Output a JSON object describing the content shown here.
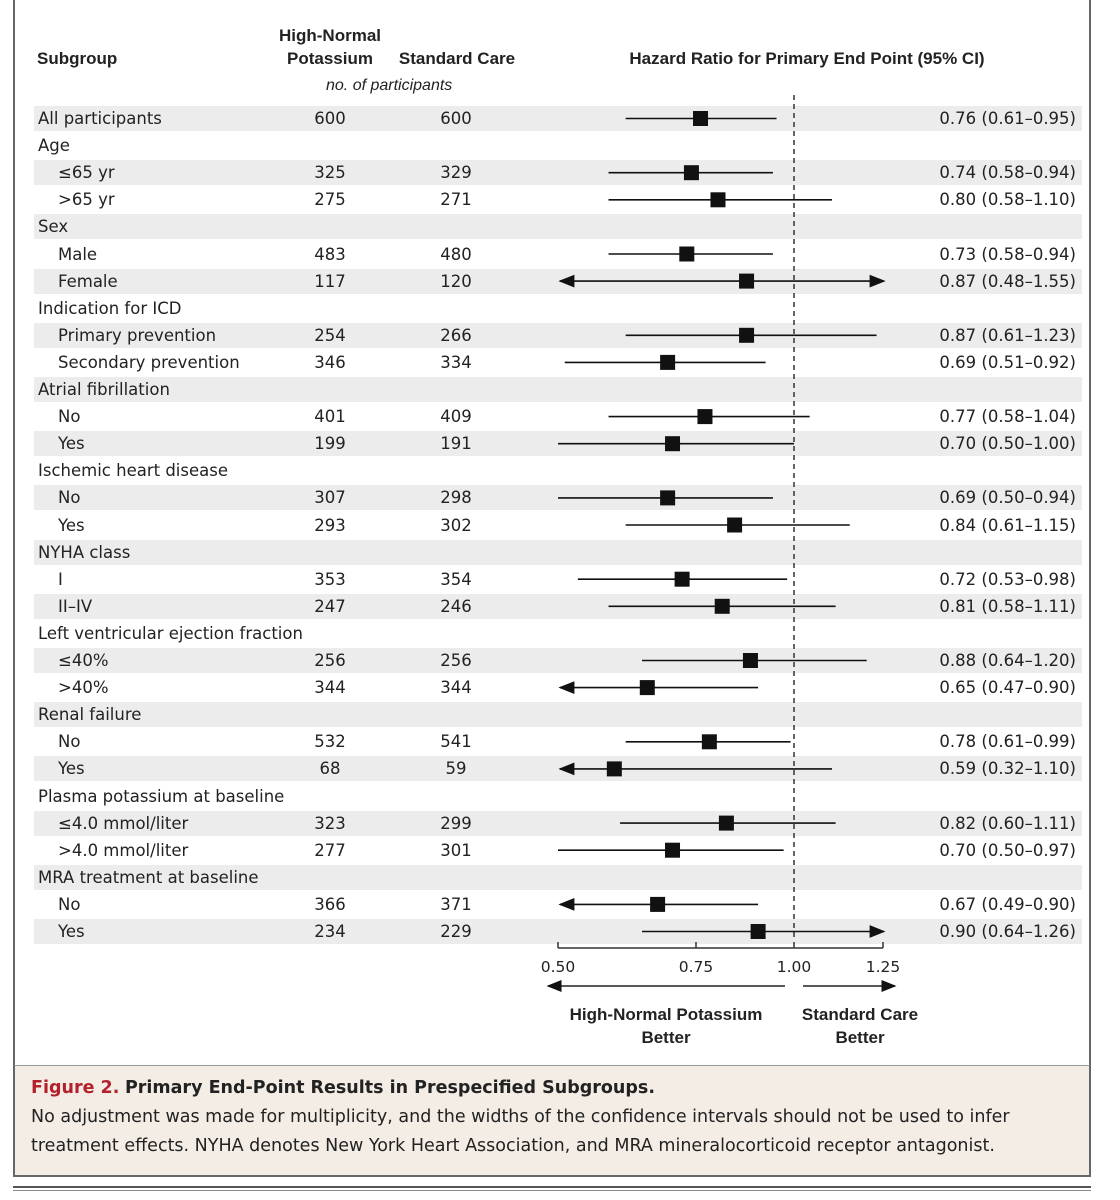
{
  "header": {
    "subgroup": "Subgroup",
    "col1": "High-Normal Potassium",
    "col2": "Standard Care",
    "participants": "no. of participants",
    "hr": "Hazard Ratio for Primary End Point (95% CI)"
  },
  "chart_data": {
    "type": "forest",
    "title": "Hazard Ratio for Primary End Point (95% CI)",
    "xscale": "log",
    "xlim": [
      0.5,
      1.25
    ],
    "reference_line": 1.0,
    "ticks": [
      "0.50",
      "0.75",
      "1.00",
      "1.25"
    ],
    "direction_left": "High-Normal Potassium Better",
    "direction_right": "Standard Care Better",
    "rows": [
      {
        "label": "All participants",
        "n1": "600",
        "n2": "600",
        "hr": 0.76,
        "lo": 0.61,
        "hi": 0.95,
        "text": "0.76 (0.61–0.95)"
      },
      {
        "label": "Age",
        "header": true
      },
      {
        "label": "≤65 yr",
        "indent": true,
        "n1": "325",
        "n2": "329",
        "hr": 0.74,
        "lo": 0.58,
        "hi": 0.94,
        "text": "0.74 (0.58–0.94)"
      },
      {
        "label": ">65 yr",
        "indent": true,
        "n1": "275",
        "n2": "271",
        "hr": 0.8,
        "lo": 0.58,
        "hi": 1.1,
        "text": "0.80 (0.58–1.10)"
      },
      {
        "label": "Sex",
        "header": true
      },
      {
        "label": "Male",
        "indent": true,
        "n1": "483",
        "n2": "480",
        "hr": 0.73,
        "lo": 0.58,
        "hi": 0.94,
        "text": "0.73 (0.58–0.94)"
      },
      {
        "label": "Female",
        "indent": true,
        "n1": "117",
        "n2": "120",
        "hr": 0.87,
        "lo": 0.48,
        "hi": 1.55,
        "text": "0.87 (0.48–1.55)"
      },
      {
        "label": "Indication for ICD",
        "header": true
      },
      {
        "label": "Primary prevention",
        "indent": true,
        "n1": "254",
        "n2": "266",
        "hr": 0.87,
        "lo": 0.61,
        "hi": 1.23,
        "text": "0.87 (0.61–1.23)"
      },
      {
        "label": "Secondary prevention",
        "indent": true,
        "n1": "346",
        "n2": "334",
        "hr": 0.69,
        "lo": 0.51,
        "hi": 0.92,
        "text": "0.69 (0.51–0.92)"
      },
      {
        "label": "Atrial fibrillation",
        "header": true
      },
      {
        "label": "No",
        "indent": true,
        "n1": "401",
        "n2": "409",
        "hr": 0.77,
        "lo": 0.58,
        "hi": 1.04,
        "text": "0.77 (0.58–1.04)"
      },
      {
        "label": "Yes",
        "indent": true,
        "n1": "199",
        "n2": "191",
        "hr": 0.7,
        "lo": 0.5,
        "hi": 1.0,
        "text": "0.70 (0.50–1.00)"
      },
      {
        "label": "Ischemic heart disease",
        "header": true
      },
      {
        "label": "No",
        "indent": true,
        "n1": "307",
        "n2": "298",
        "hr": 0.69,
        "lo": 0.5,
        "hi": 0.94,
        "text": "0.69 (0.50–0.94)"
      },
      {
        "label": "Yes",
        "indent": true,
        "n1": "293",
        "n2": "302",
        "hr": 0.84,
        "lo": 0.61,
        "hi": 1.15,
        "text": "0.84 (0.61–1.15)"
      },
      {
        "label": "NYHA class",
        "header": true
      },
      {
        "label": "I",
        "indent": true,
        "n1": "353",
        "n2": "354",
        "hr": 0.72,
        "lo": 0.53,
        "hi": 0.98,
        "text": "0.72 (0.53–0.98)"
      },
      {
        "label": "II–IV",
        "indent": true,
        "n1": "247",
        "n2": "246",
        "hr": 0.81,
        "lo": 0.58,
        "hi": 1.11,
        "text": "0.81 (0.58–1.11)"
      },
      {
        "label": "Left ventricular ejection fraction",
        "header": true
      },
      {
        "label": "≤40%",
        "indent": true,
        "n1": "256",
        "n2": "256",
        "hr": 0.88,
        "lo": 0.64,
        "hi": 1.2,
        "text": "0.88 (0.64–1.20)"
      },
      {
        "label": ">40%",
        "indent": true,
        "n1": "344",
        "n2": "344",
        "hr": 0.65,
        "lo": 0.47,
        "hi": 0.9,
        "text": "0.65 (0.47–0.90)"
      },
      {
        "label": "Renal failure",
        "header": true
      },
      {
        "label": "No",
        "indent": true,
        "n1": "532",
        "n2": "541",
        "hr": 0.78,
        "lo": 0.61,
        "hi": 0.99,
        "text": "0.78 (0.61–0.99)"
      },
      {
        "label": "Yes",
        "indent": true,
        "n1": "68",
        "n2": "59",
        "hr": 0.59,
        "lo": 0.32,
        "hi": 1.1,
        "text": "0.59 (0.32–1.10)"
      },
      {
        "label": "Plasma potassium at baseline",
        "header": true
      },
      {
        "label": "≤4.0 mmol/liter",
        "indent": true,
        "n1": "323",
        "n2": "299",
        "hr": 0.82,
        "lo": 0.6,
        "hi": 1.11,
        "text": "0.82 (0.60–1.11)"
      },
      {
        "label": ">4.0 mmol/liter",
        "indent": true,
        "n1": "277",
        "n2": "301",
        "hr": 0.7,
        "lo": 0.5,
        "hi": 0.97,
        "text": "0.70 (0.50–0.97)"
      },
      {
        "label": "MRA treatment at baseline",
        "header": true
      },
      {
        "label": "No",
        "indent": true,
        "n1": "366",
        "n2": "371",
        "hr": 0.67,
        "lo": 0.49,
        "hi": 0.9,
        "text": "0.67 (0.49–0.90)"
      },
      {
        "label": "Yes",
        "indent": true,
        "n1": "234",
        "n2": "229",
        "hr": 0.9,
        "lo": 0.64,
        "hi": 1.26,
        "text": "0.90 (0.64–1.26)"
      }
    ]
  },
  "caption": {
    "figure": "Figure 2.",
    "title": "Primary End-Point Results in Prespecified Subgroups.",
    "text": "No adjustment was made for multiplicity, and the widths of the confidence intervals should not be used to infer treatment effects. NYHA denotes New York Heart Association, and MRA mineralocorticoid receptor antagonist."
  },
  "colors": {
    "shade": "#ececec",
    "caption_bg": "#f3ede6",
    "figure_label": "#b3212b"
  }
}
